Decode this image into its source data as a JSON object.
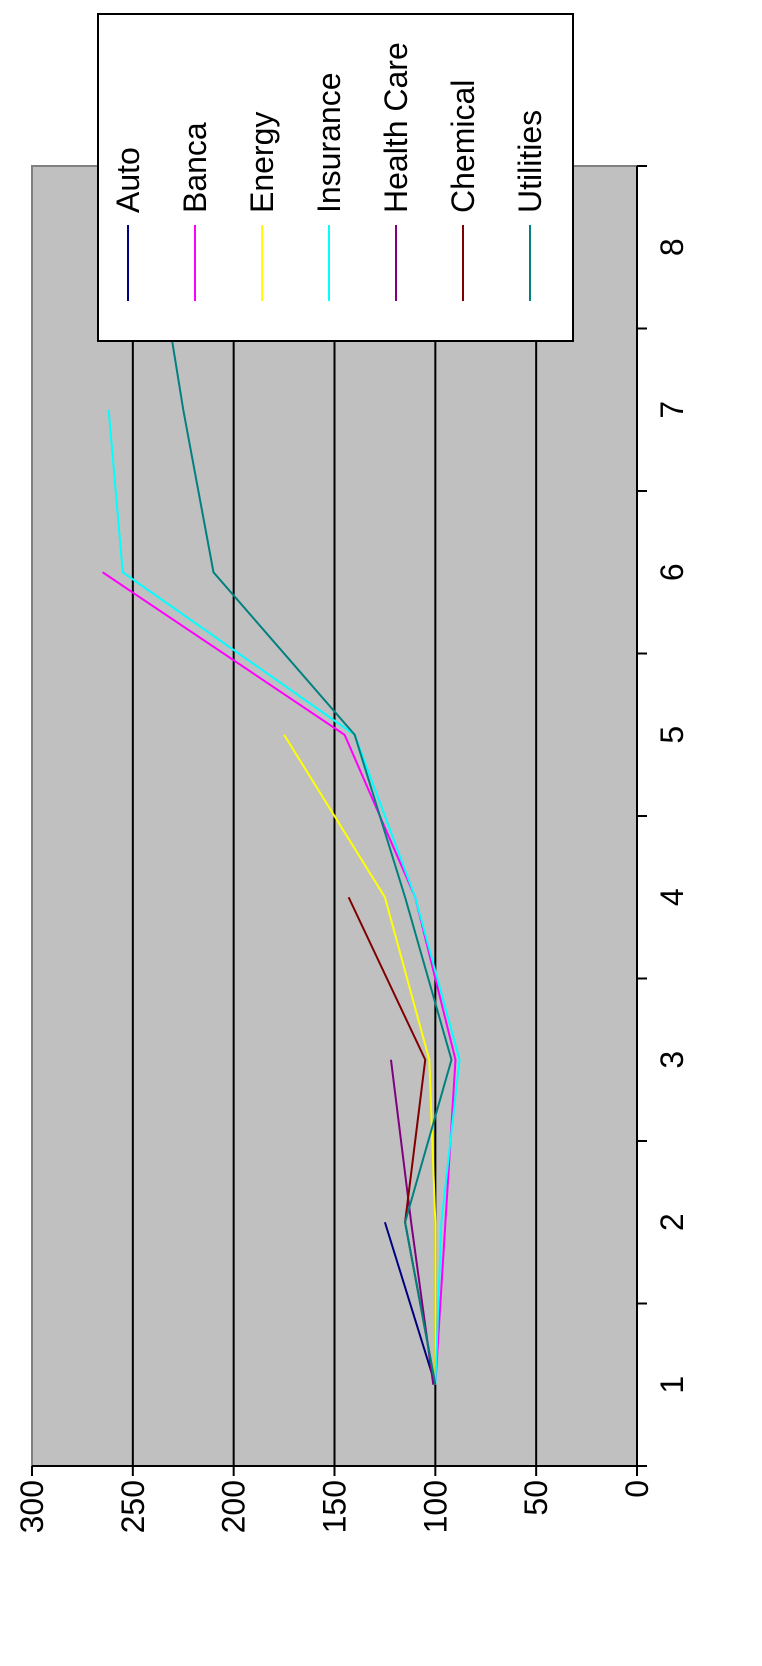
{
  "chart_data": {
    "type": "line",
    "title": "",
    "xlabel": "",
    "ylabel": "",
    "x_ticks": [
      "1",
      "2",
      "3",
      "4",
      "5",
      "6",
      "7",
      "8"
    ],
    "y_ticks": [
      "0",
      "50",
      "100",
      "150",
      "200",
      "250",
      "300"
    ],
    "xlim": [
      0.5,
      8.5
    ],
    "ylim": [
      0,
      300
    ],
    "grid": true,
    "legend_position": "right",
    "plot_background": "#c0c0c0",
    "series": [
      {
        "name": "Auto",
        "color": "#000080",
        "x": [
          1,
          2
        ],
        "y": [
          100,
          125
        ]
      },
      {
        "name": "Banca",
        "color": "#ff00ff",
        "x": [
          1,
          2,
          3,
          4,
          5,
          6
        ],
        "y": [
          100,
          95,
          90,
          110,
          145,
          265
        ]
      },
      {
        "name": "Energy",
        "color": "#ffff00",
        "x": [
          1,
          2,
          3,
          4,
          5
        ],
        "y": [
          100,
          100,
          103,
          125,
          175
        ]
      },
      {
        "name": "Insurance",
        "color": "#00ffff",
        "x": [
          1,
          2,
          3,
          4,
          5,
          6,
          7
        ],
        "y": [
          100,
          97,
          88,
          110,
          140,
          255,
          262
        ]
      },
      {
        "name": "Health Care",
        "color": "#800080",
        "x": [
          1,
          2,
          3
        ],
        "y": [
          101,
          112,
          122
        ]
      },
      {
        "name": "Chemical",
        "color": "#800000",
        "x": [
          1,
          2,
          3,
          4
        ],
        "y": [
          100,
          115,
          105,
          143
        ]
      },
      {
        "name": "Utilities",
        "color": "#008080",
        "x": [
          1,
          2,
          3,
          4,
          5,
          6,
          7,
          8
        ],
        "y": [
          100,
          115,
          92,
          115,
          140,
          210,
          225,
          238
        ]
      }
    ]
  }
}
